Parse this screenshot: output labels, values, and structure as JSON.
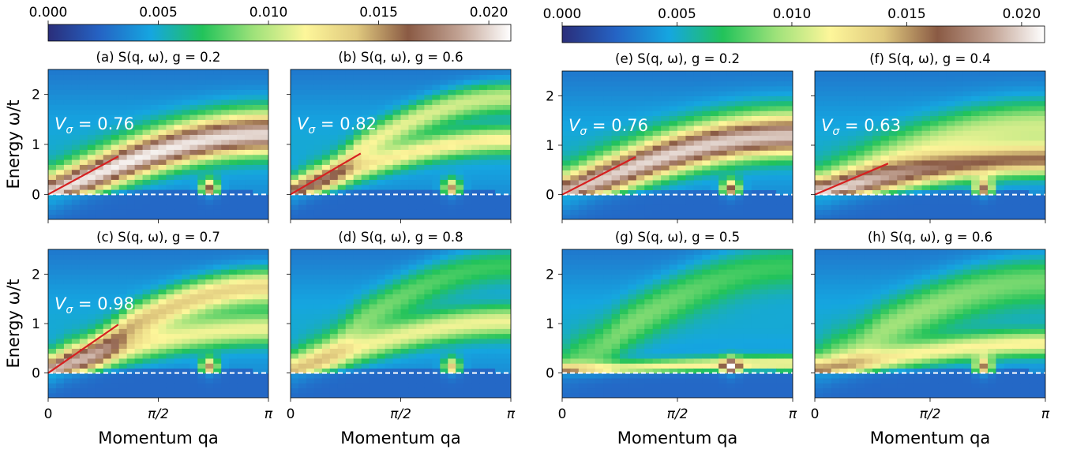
{
  "colorbars": [
    {
      "ticks": [
        "0.000",
        "0.005",
        "0.010",
        "0.015",
        "0.020"
      ],
      "range": [
        0,
        0.021
      ]
    },
    {
      "ticks": [
        "0.000",
        "0.005",
        "0.010",
        "0.015",
        "0.020"
      ],
      "range": [
        0,
        0.021
      ]
    }
  ],
  "colormap": [
    "#2a2e7a",
    "#2563c4",
    "#15a6e0",
    "#22c35a",
    "#9fe27a",
    "#fdf69a",
    "#e0c97e",
    "#8a5a44",
    "#c2a394",
    "#ffffff"
  ],
  "axis_labels": {
    "ylabel": "Energy ω/t",
    "xlabel": "Momentum qa"
  },
  "x_ticks": [
    {
      "value": 0,
      "label": "0"
    },
    {
      "value": 1.5708,
      "label": "π/2"
    },
    {
      "value": 3.1416,
      "label": "π"
    }
  ],
  "y_ticks": [
    {
      "value": 0,
      "label": "0"
    },
    {
      "value": 1,
      "label": "1"
    },
    {
      "value": 2,
      "label": "2"
    }
  ],
  "chart_data": [
    {
      "type": "heatmap",
      "title": "(a) S(q, ω), g = 0.2",
      "xlim": [
        0,
        3.1416
      ],
      "ylim": [
        -0.5,
        2.5
      ],
      "velocity_label": "0.76",
      "velocity_line": {
        "x": [
          0,
          1.0
        ],
        "y": [
          0,
          0.76
        ]
      },
      "model": {
        "bands": [
          {
            "amp": 0.7,
            "c": 0.76,
            "top": 1.15,
            "width": 0.35
          },
          {
            "amp": 0.55,
            "c": 1.3,
            "top": 1.35,
            "width": 0.45
          }
        ],
        "bright": {
          "q": 2.3,
          "amp": 1.0
        },
        "zero_mode": true
      }
    },
    {
      "type": "heatmap",
      "title": "(b) S(q, ω), g = 0.6",
      "xlim": [
        0,
        3.1416
      ],
      "ylim": [
        -0.5,
        2.5
      ],
      "velocity_label": "0.82",
      "velocity_line": {
        "x": [
          0,
          1.0
        ],
        "y": [
          0,
          0.82
        ]
      },
      "model": {
        "bands": [
          {
            "amp": 0.55,
            "c": 0.82,
            "top": 1.1,
            "width": 0.25
          },
          {
            "amp": 0.5,
            "c": 1.55,
            "top": 1.95,
            "width": 0.3
          }
        ],
        "bright": {
          "q": 2.3,
          "amp": 0.9
        },
        "zero_mode": true
      }
    },
    {
      "type": "heatmap",
      "title": "(c) S(q, ω), g = 0.7",
      "xlim": [
        0,
        3.1416
      ],
      "ylim": [
        -0.5,
        2.5
      ],
      "velocity_label": "0.98",
      "velocity_line": {
        "x": [
          0,
          1.0
        ],
        "y": [
          0,
          0.98
        ]
      },
      "model": {
        "bands": [
          {
            "amp": 0.7,
            "c": 1.2,
            "top": 1.75,
            "width": 0.35
          },
          {
            "amp": 0.5,
            "c": 0.95,
            "top": 0.9,
            "width": 0.3
          }
        ],
        "bright": {
          "q": 2.3,
          "amp": 0.9
        },
        "zero_mode": true
      }
    },
    {
      "type": "heatmap",
      "title": "(d) S(q, ω), g = 0.8",
      "xlim": [
        0,
        3.1416
      ],
      "ylim": [
        -0.5,
        2.5
      ],
      "velocity_label": "",
      "velocity_line": null,
      "model": {
        "bands": [
          {
            "amp": 0.5,
            "c": 0.9,
            "top": 1.05,
            "width": 0.3
          },
          {
            "amp": 0.3,
            "c": 1.8,
            "top": 2.2,
            "width": 0.4
          }
        ],
        "bright": {
          "q": 2.3,
          "amp": 0.8
        },
        "zero_mode": true
      }
    },
    {
      "type": "heatmap",
      "title": "(e) S(q, ω), g = 0.2",
      "xlim": [
        0,
        3.1416
      ],
      "ylim": [
        -0.5,
        2.5
      ],
      "velocity_label": "0.76",
      "velocity_line": {
        "x": [
          0,
          1.0
        ],
        "y": [
          0,
          0.76
        ]
      },
      "model": {
        "bands": [
          {
            "amp": 0.7,
            "c": 0.76,
            "top": 1.15,
            "width": 0.35
          },
          {
            "amp": 0.5,
            "c": 1.3,
            "top": 1.35,
            "width": 0.5
          }
        ],
        "bright": {
          "q": 2.3,
          "amp": 1.0
        },
        "zero_mode": true
      }
    },
    {
      "type": "heatmap",
      "title": "(f) S(q, ω), g = 0.4",
      "xlim": [
        0,
        3.1416
      ],
      "ylim": [
        -0.5,
        2.5
      ],
      "velocity_label": "0.63",
      "velocity_line": {
        "x": [
          0,
          1.0
        ],
        "y": [
          0,
          0.63
        ]
      },
      "model": {
        "bands": [
          {
            "amp": 0.8,
            "c": 0.63,
            "top": 0.7,
            "width": 0.3
          },
          {
            "amp": 0.45,
            "c": 1.1,
            "top": 1.4,
            "width": 0.5
          }
        ],
        "bright": {
          "q": 2.3,
          "amp": 1.0
        },
        "zero_mode": true
      }
    },
    {
      "type": "heatmap",
      "title": "(g) S(q, ω), g = 0.5",
      "xlim": [
        0,
        3.1416
      ],
      "ylim": [
        -0.5,
        2.5
      ],
      "velocity_label": "",
      "velocity_line": null,
      "model": {
        "bands": [
          {
            "amp": 0.6,
            "c": 0.4,
            "top": 0.2,
            "width": 0.15
          },
          {
            "amp": 0.3,
            "c": 2.0,
            "top": 2.2,
            "width": 0.5
          }
        ],
        "bright": {
          "q": 2.3,
          "amp": 0.9
        },
        "zero_mode": true
      }
    },
    {
      "type": "heatmap",
      "title": "(h) S(q, ω), g = 0.6",
      "xlim": [
        0,
        3.1416
      ],
      "ylim": [
        -0.5,
        2.5
      ],
      "velocity_label": "",
      "velocity_line": null,
      "model": {
        "bands": [
          {
            "amp": 0.55,
            "c": 0.8,
            "top": 0.6,
            "width": 0.25
          },
          {
            "amp": 0.35,
            "c": 1.6,
            "top": 1.9,
            "width": 0.5
          }
        ],
        "bright": {
          "q": 2.3,
          "amp": 0.9
        },
        "zero_mode": true
      }
    }
  ]
}
